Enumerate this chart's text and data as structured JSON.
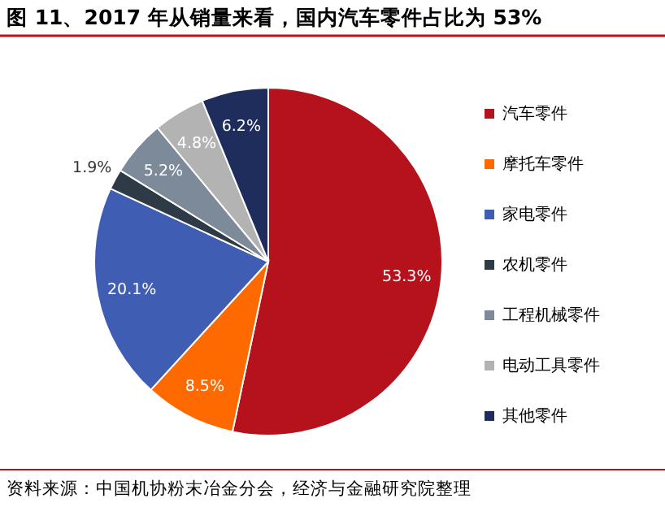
{
  "chart_data": {
    "type": "pie",
    "title": "图 11、2017 年从销量来看，国内汽车零件占比为 53%",
    "categories": [
      "汽车零件",
      "摩托车零件",
      "家电零件",
      "农机零件",
      "工程机械零件",
      "电动工具零件",
      "其他零件"
    ],
    "values": [
      53.3,
      8.5,
      20.1,
      1.9,
      5.2,
      4.8,
      6.2
    ],
    "value_labels": [
      "53.3%",
      "8.5%",
      "20.1%",
      "1.9%",
      "5.2%",
      "4.8%",
      "6.2%"
    ],
    "colors": [
      "#b5121b",
      "#ff6a00",
      "#3f5db3",
      "#2e3a46",
      "#7d8a99",
      "#b3b3b3",
      "#1f2d5c"
    ],
    "legend": "right",
    "annotations": [
      "资料来源：中国机协粉末冶金分会，经济与金融研究院整理"
    ]
  }
}
